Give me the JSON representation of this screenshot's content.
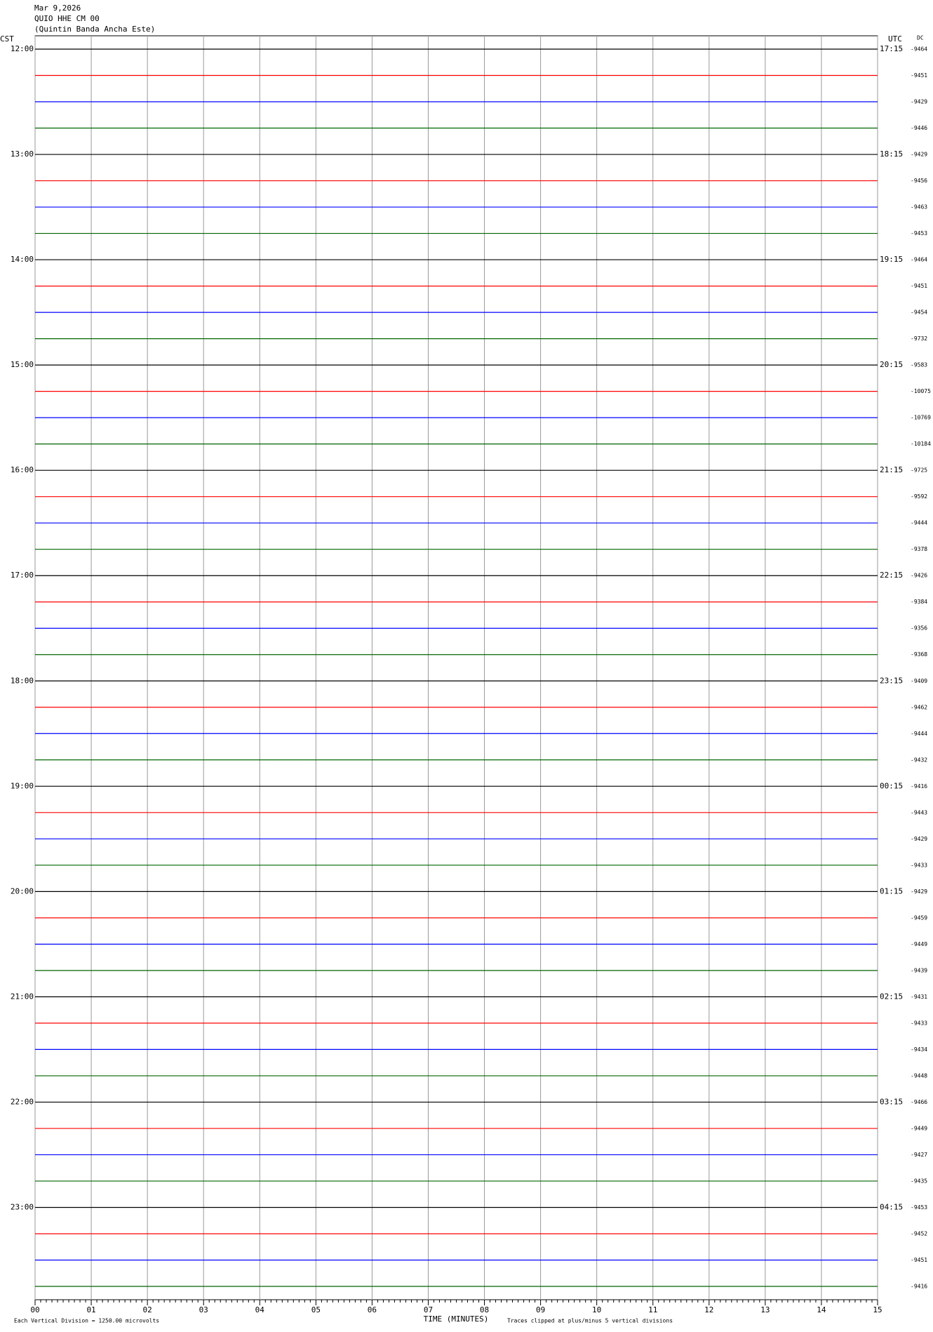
{
  "chart_data": {
    "type": "helicorder",
    "header": [
      "Mar 9,2026",
      "QUIO HHE CM 00",
      "(Quintin Banda Ancha Este)"
    ],
    "left_axis_title": "CST",
    "right_axis_title": "UTC",
    "dc_title": "DC",
    "trace_colors": [
      "#000000",
      "#ff0000",
      "#0000ff",
      "#006400"
    ],
    "rows_per_label": 4,
    "cst_labels": [
      "12:00",
      "13:00",
      "14:00",
      "15:00",
      "16:00",
      "17:00",
      "18:00",
      "19:00",
      "20:00",
      "21:00",
      "22:00",
      "23:00"
    ],
    "utc_labels": [
      "17:15",
      "18:15",
      "19:15",
      "20:15",
      "21:15",
      "22:15",
      "23:15",
      "00:15",
      "01:15",
      "02:15",
      "03:15",
      "04:15"
    ],
    "dc_values": [
      -9464,
      -9451,
      -9429,
      -9446,
      -9429,
      -9456,
      -9463,
      -9453,
      -9464,
      -9451,
      -9454,
      -9732,
      -9583,
      -10075,
      -10769,
      -10184,
      -9725,
      -9592,
      -9444,
      -9378,
      -9426,
      -9384,
      -9356,
      -9368,
      -9409,
      -9462,
      -9444,
      -9432,
      -9416,
      -9443,
      -9429,
      -9433,
      -9429,
      -9459,
      -9449,
      -9439,
      -9431,
      -9433,
      -9434,
      -9448,
      -9466,
      -9449,
      -9427,
      -9435,
      -9453,
      -9452,
      -9451,
      -9416
    ],
    "xlim": [
      0,
      15
    ],
    "xticks": [
      {
        "value": 0,
        "label": "00"
      },
      {
        "value": 1,
        "label": "01"
      },
      {
        "value": 2,
        "label": "02"
      },
      {
        "value": 3,
        "label": "03"
      },
      {
        "value": 4,
        "label": "04"
      },
      {
        "value": 5,
        "label": "05"
      },
      {
        "value": 6,
        "label": "06"
      },
      {
        "value": 7,
        "label": "07"
      },
      {
        "value": 8,
        "label": "08"
      },
      {
        "value": 9,
        "label": "09"
      },
      {
        "value": 10,
        "label": "10"
      },
      {
        "value": 11,
        "label": "11"
      },
      {
        "value": 12,
        "label": "12"
      },
      {
        "value": 13,
        "label": "13"
      },
      {
        "value": 14,
        "label": "14"
      },
      {
        "value": 15,
        "label": "15"
      }
    ],
    "x_label": "TIME (MINUTES)",
    "footer_left": "Each Vertical Division = 1250.00 microvolts",
    "footer_right": "Traces clipped at plus/minus 5 vertical divisions",
    "grid": true
  }
}
